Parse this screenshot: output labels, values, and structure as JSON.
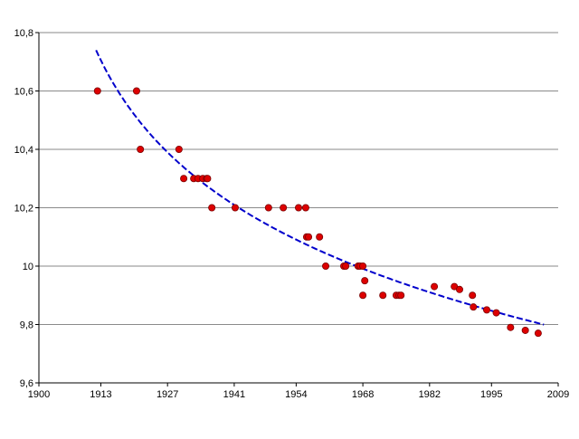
{
  "chart_data": {
    "type": "scatter",
    "title": "",
    "xlabel": "",
    "ylabel": "",
    "xlim": [
      1900,
      2009
    ],
    "ylim": [
      9.6,
      10.8
    ],
    "grid": "horizontal",
    "legend": "none",
    "x_ticks": [
      1900,
      1913,
      1927,
      1941,
      1954,
      1968,
      1982,
      1995,
      2009
    ],
    "x_tick_labels": [
      "1900",
      "1913",
      "1927",
      "1941",
      "1954",
      "1968",
      "1982",
      "1995",
      "2009"
    ],
    "y_ticks": [
      9.6,
      9.8,
      10.0,
      10.2,
      10.4,
      10.6,
      10.8
    ],
    "y_tick_labels": [
      "9,6",
      "9,8",
      "10",
      "10,2",
      "10,4",
      "10,6",
      "10,8"
    ],
    "series": [
      {
        "type": "scatter",
        "color": "#dd0000",
        "points": [
          [
            1912.3,
            10.6
          ],
          [
            1920.5,
            10.6
          ],
          [
            1921.3,
            10.4
          ],
          [
            1929.4,
            10.4
          ],
          [
            1930.4,
            10.3
          ],
          [
            1932.5,
            10.3
          ],
          [
            1933.4,
            10.3
          ],
          [
            1934.4,
            10.3
          ],
          [
            1935.2,
            10.3
          ],
          [
            1935.4,
            10.3
          ],
          [
            1936.3,
            10.2
          ],
          [
            1941.2,
            10.2
          ],
          [
            1948.2,
            10.2
          ],
          [
            1951.3,
            10.2
          ],
          [
            1954.5,
            10.2
          ],
          [
            1956.0,
            10.2
          ],
          [
            1956.2,
            10.1
          ],
          [
            1956.6,
            10.1
          ],
          [
            1958.9,
            10.1
          ],
          [
            1960.2,
            10.0
          ],
          [
            1964.0,
            10.0
          ],
          [
            1964.4,
            10.0
          ],
          [
            1967.0,
            10.0
          ],
          [
            1967.4,
            10.0
          ],
          [
            1968.0,
            10.0
          ],
          [
            1968.4,
            9.95
          ],
          [
            1968.0,
            9.9
          ],
          [
            1972.2,
            9.9
          ],
          [
            1975.0,
            9.9
          ],
          [
            1975.6,
            9.9
          ],
          [
            1976.0,
            9.9
          ],
          [
            1983.0,
            9.93
          ],
          [
            1987.2,
            9.93
          ],
          [
            1988.3,
            9.92
          ],
          [
            1991.0,
            9.9
          ],
          [
            1991.2,
            9.86
          ],
          [
            1994.0,
            9.85
          ],
          [
            1996.0,
            9.84
          ],
          [
            1999.0,
            9.79
          ],
          [
            2002.1,
            9.78
          ],
          [
            2004.8,
            9.77
          ]
        ]
      },
      {
        "type": "trendline",
        "style": "dashed",
        "color": "#0000cc",
        "x_range": [
          1912,
          2006
        ],
        "model": "logarithmic",
        "coefficients": {
          "a": 11.812,
          "b": -0.4315,
          "x0": 1900
        }
      }
    ]
  }
}
